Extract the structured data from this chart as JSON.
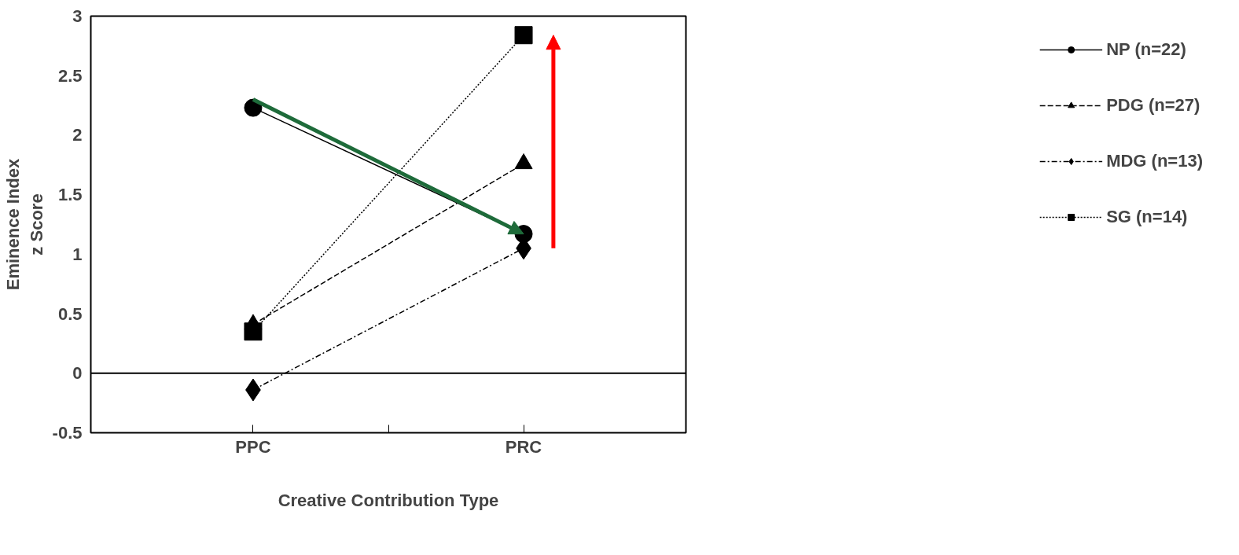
{
  "chart_data": {
    "type": "line",
    "xlabel": "Creative Contribution Type",
    "ylabel": "Eminence Index\nz Score",
    "categories": [
      "PPC",
      "PRC"
    ],
    "series": [
      {
        "name": "NP (n=22)",
        "color": "#000000",
        "values": [
          2.23,
          1.17
        ],
        "marker": "circle",
        "line_style": "solid"
      },
      {
        "name": "PDG (n=27)",
        "color": "#000000",
        "values": [
          0.41,
          1.76
        ],
        "marker": "triangle",
        "line_style": "dashed"
      },
      {
        "name": "MDG (n=13)",
        "color": "#000000",
        "values": [
          -0.14,
          1.05
        ],
        "marker": "diamond",
        "line_style": "dashdot"
      },
      {
        "name": "SG (n=14)",
        "color": "#000000",
        "values": [
          0.35,
          2.84
        ],
        "marker": "square",
        "line_style": "dotted"
      }
    ],
    "ylim": [
      -0.5,
      3
    ],
    "yticks": [
      -0.5,
      0,
      0.5,
      1,
      1.5,
      2,
      2.5,
      3
    ],
    "ref_lines": [
      {
        "axis": "y",
        "value": 0,
        "color": "#000000"
      }
    ],
    "grid": false,
    "legend": "right"
  }
}
